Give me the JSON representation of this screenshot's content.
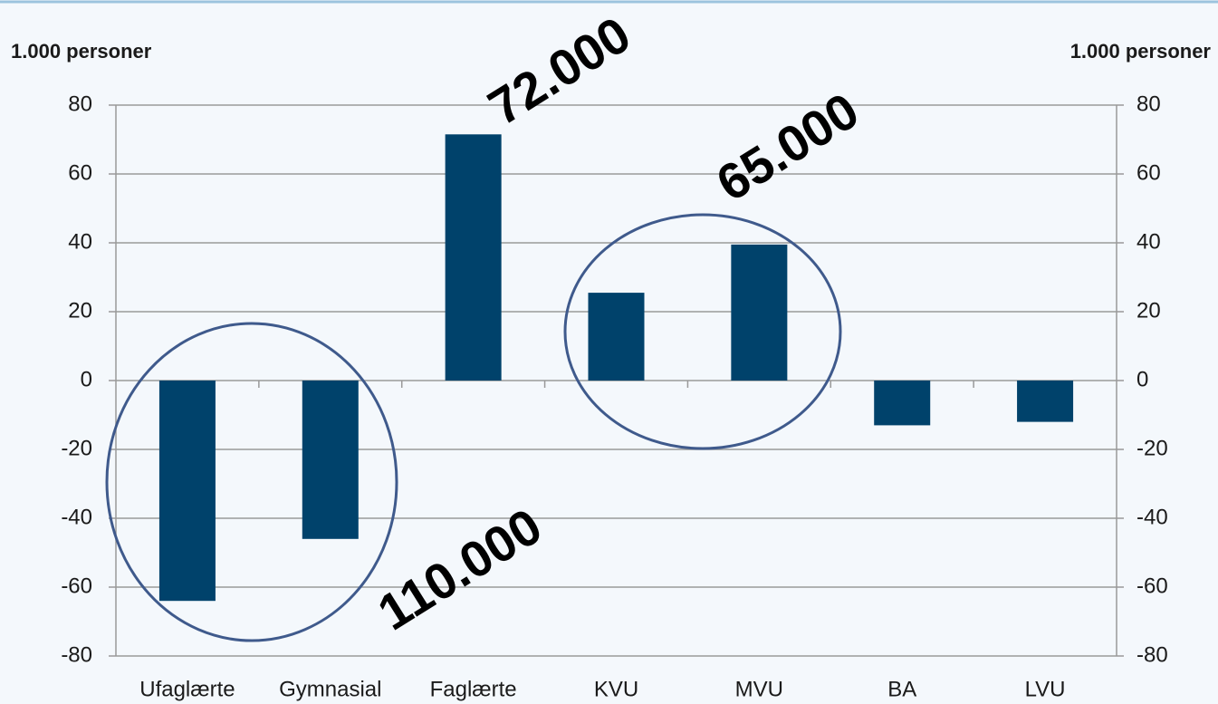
{
  "chart_data": {
    "type": "bar",
    "y_label": "1.000 personer",
    "y2_label": "1.000 personer",
    "categories": [
      "Ufaglærte",
      "Gymnasial",
      "Faglærte",
      "KVU",
      "MVU",
      "BA",
      "LVU"
    ],
    "series": [
      {
        "name": null,
        "color": "#00426b",
        "values": [
          -64,
          -46,
          71.5,
          25.5,
          39.5,
          -13,
          -12
        ]
      }
    ],
    "ylim": [
      -80,
      80
    ],
    "yticks": [
      -80,
      -60,
      -40,
      -20,
      0,
      20,
      40,
      60,
      80
    ],
    "y2lim": [
      -80,
      80
    ],
    "y2ticks": [
      -80,
      -60,
      -40,
      -20,
      0,
      20,
      40,
      60,
      80
    ],
    "grid": true,
    "annotations": [
      "72.000",
      "65.000",
      "110.000"
    ]
  }
}
